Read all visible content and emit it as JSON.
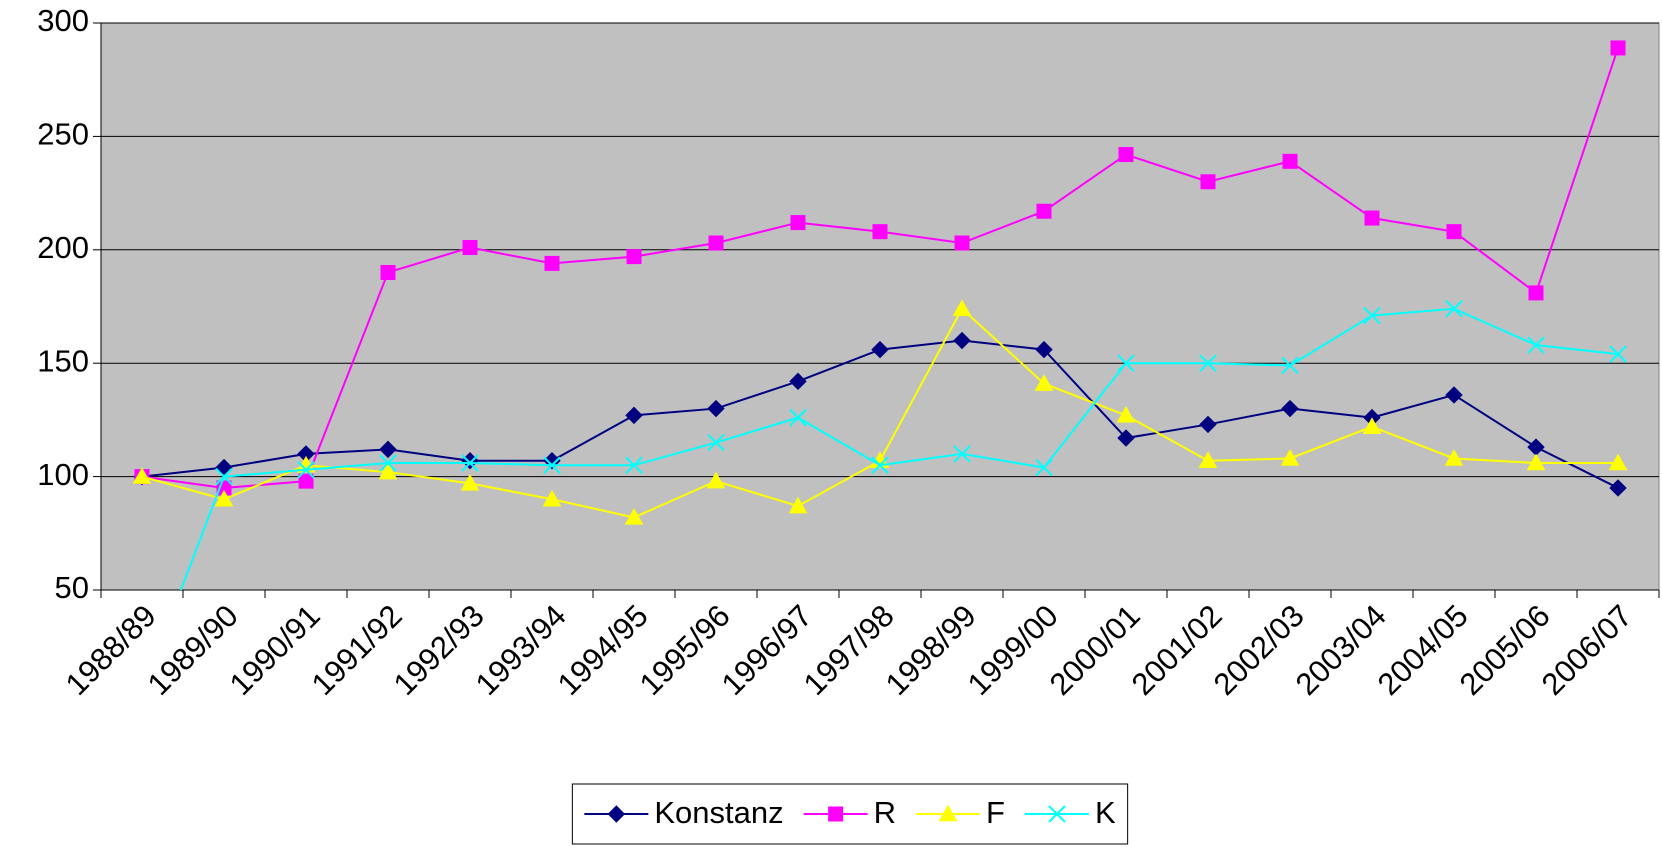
{
  "chart_data": {
    "type": "line",
    "categories": [
      "1988/89",
      "1989/90",
      "1990/91",
      "1991/92",
      "1992/93",
      "1993/94",
      "1994/95",
      "1995/96",
      "1996/97",
      "1997/98",
      "1998/99",
      "1999/00",
      "2000/01",
      "2001/02",
      "2002/03",
      "2003/04",
      "2004/05",
      "2005/06",
      "2006/07"
    ],
    "series": [
      {
        "name": "Konstanz",
        "color": "#000080",
        "marker": "diamond",
        "values": [
          100,
          104,
          110,
          112,
          107,
          107,
          127,
          130,
          142,
          156,
          160,
          156,
          117,
          123,
          130,
          126,
          136,
          113,
          95
        ]
      },
      {
        "name": "R",
        "color": "#ff00ff",
        "marker": "square",
        "values": [
          100,
          95,
          98,
          190,
          201,
          194,
          197,
          203,
          212,
          208,
          203,
          217,
          242,
          230,
          239,
          214,
          208,
          181,
          289
        ]
      },
      {
        "name": "F",
        "color": "#ffff00",
        "marker": "triangle",
        "values": [
          100,
          90,
          105,
          102,
          97,
          90,
          82,
          98,
          87,
          107,
          174,
          141,
          127,
          107,
          108,
          122,
          108,
          106,
          106
        ]
      },
      {
        "name": "K",
        "color": "#00ffff",
        "marker": "x",
        "values": [
          5,
          100,
          103,
          106,
          106,
          105,
          105,
          115,
          126,
          105,
          110,
          104,
          150,
          150,
          149,
          171,
          174,
          158,
          154
        ]
      }
    ],
    "ylim": [
      50,
      300
    ],
    "yticks": [
      50,
      100,
      150,
      200,
      250,
      300
    ],
    "grid": true,
    "legend": "bottom",
    "background": "#c0c0c0"
  }
}
